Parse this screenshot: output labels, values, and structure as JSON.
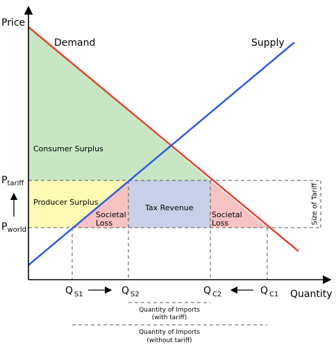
{
  "axes": {
    "y_label": "Price",
    "x_label": "Quantity"
  },
  "curves": {
    "demand_label": "Demand",
    "supply_label": "Supply",
    "demand_color": "#e8412c",
    "supply_color": "#2a5be6"
  },
  "prices": {
    "tariff_main": "P",
    "tariff_sub": "tariff",
    "world_main": "P",
    "world_sub": "world"
  },
  "quantities": {
    "qs1_main": "Q",
    "qs1_sub": "S1",
    "qs2_main": "Q",
    "qs2_sub": "S2",
    "qc2_main": "Q",
    "qc2_sub": "C2",
    "qc1_main": "Q",
    "qc1_sub": "C1"
  },
  "regions": {
    "consumer_surplus": "Consumer Surplus",
    "producer_surplus": "Producer Surplus",
    "tax_revenue": "Tax Revenue",
    "societal_loss_left_1": "Societal",
    "societal_loss_left_2": "Loss",
    "societal_loss_right_1": "Societal",
    "societal_loss_right_2": "Loss",
    "consumer_color": "#c8e6c4",
    "producer_color": "#fffbb4",
    "tax_color": "#c7d0e6",
    "loss_color": "#f7c2c2"
  },
  "annotations": {
    "tariff_size": "Size of Tariff",
    "imports_with_1": "Quantity of Imports",
    "imports_with_2": "(with tariff)",
    "imports_without_1": "Quantity of Imports",
    "imports_without_2": "(without tariff)"
  }
}
